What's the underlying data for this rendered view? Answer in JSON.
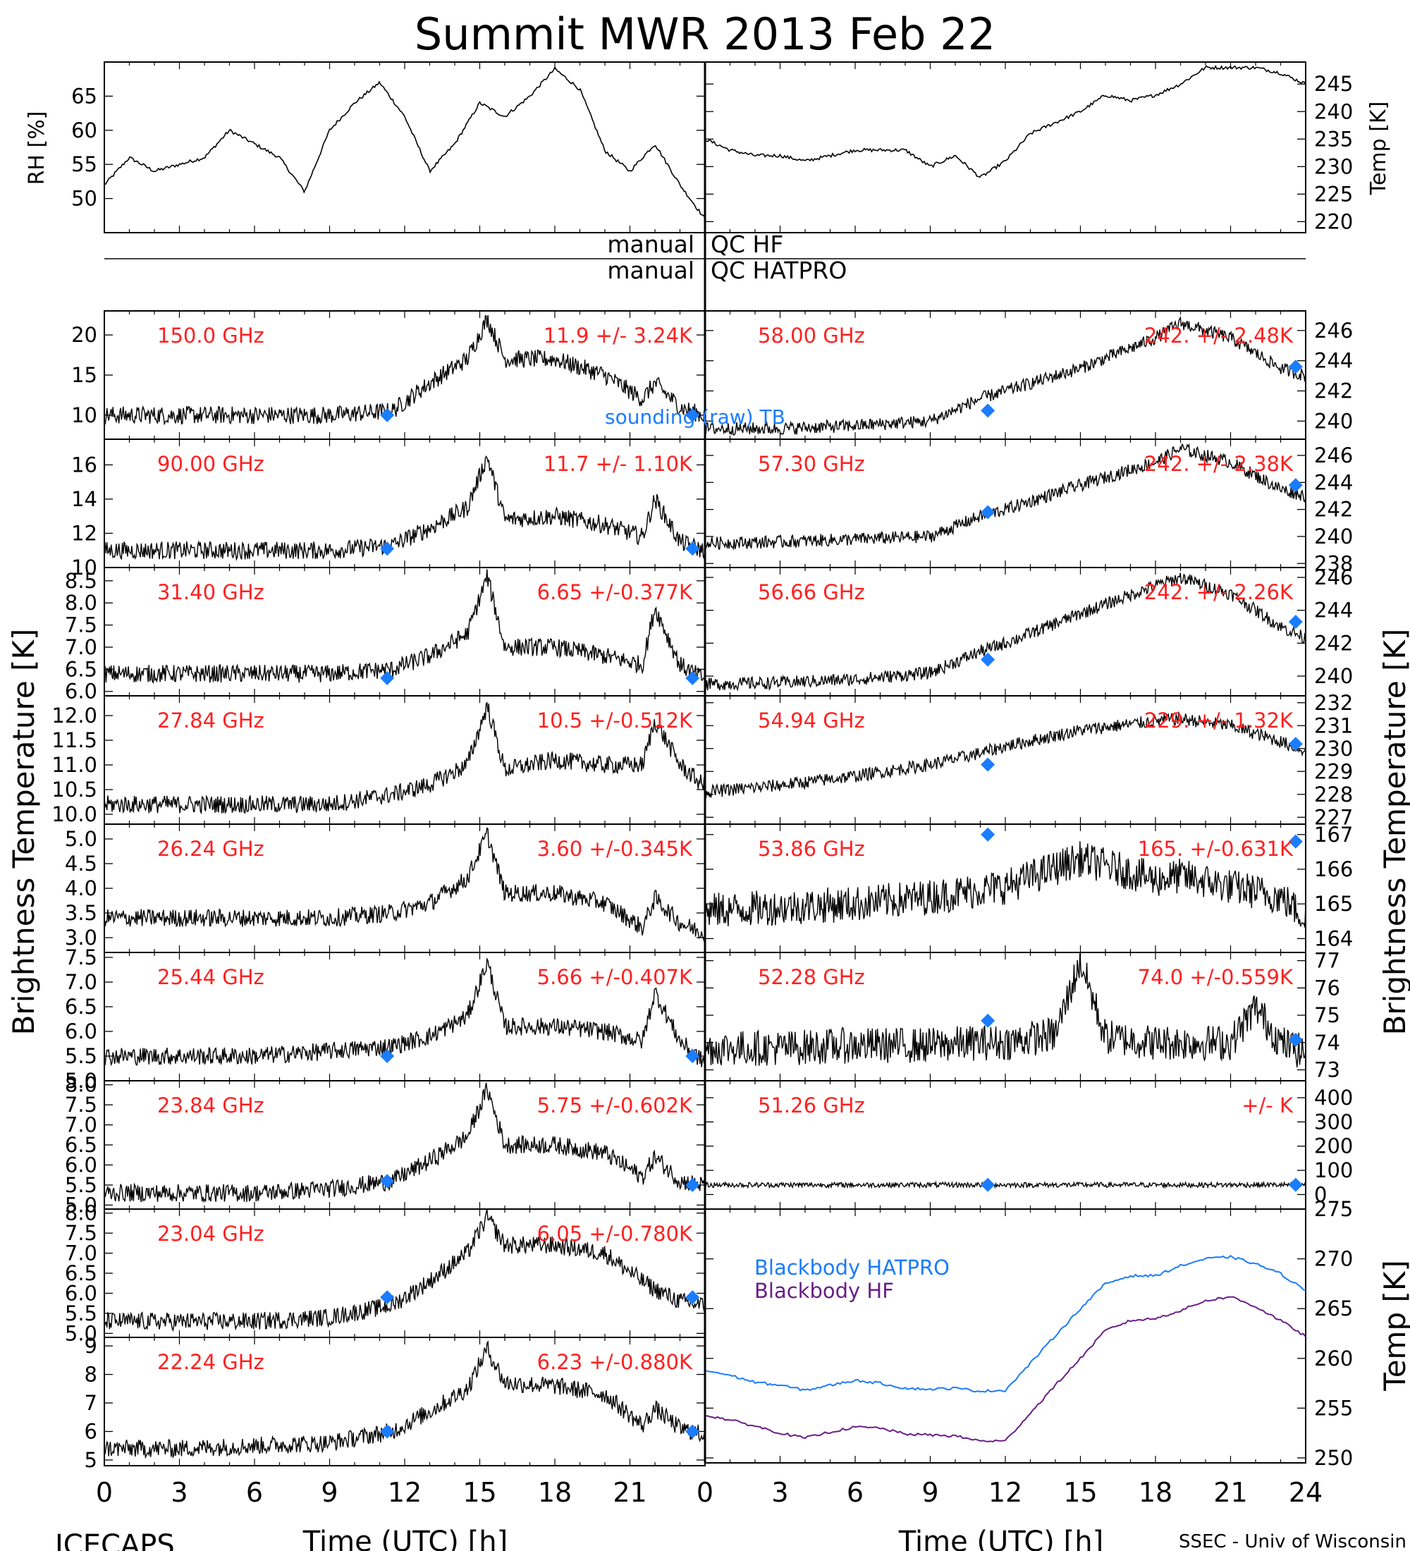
{
  "title": "Summit MWR 2013 Feb 22",
  "footer": {
    "left": "ICECAPS",
    "right": "SSEC - Univ of Wisconsin"
  },
  "xaxis": {
    "label": "Time (UTC) [h]",
    "ticks": [
      0,
      3,
      6,
      9,
      12,
      15,
      18,
      21,
      24
    ],
    "range": [
      0,
      24
    ]
  },
  "left_ylabel": "Brightness Temperature [K]",
  "right_ylabel": "Brightness Temperature [K]",
  "qc": {
    "hf_label": "manual QC HF",
    "hatpro_label": "manual QC HATPRO",
    "manual": "manual",
    "qc_hf": "QC HF",
    "qc_hatpro": "QC HATPRO"
  },
  "sounding_label": "sounding (raw) TB",
  "colors": {
    "annotation": "#ff2020",
    "sounding": "#1a7cff",
    "hatpro": "#1a7cff",
    "hf": "#6a1e88",
    "data": "#000000"
  },
  "chart_data": {
    "met": {
      "rh": {
        "ylabel": "RH [%]",
        "ticks": [
          50,
          55,
          60,
          65
        ],
        "ylim": [
          45,
          70
        ],
        "x": [
          0,
          1,
          2,
          3,
          4,
          5,
          6,
          7,
          8,
          9,
          10,
          11,
          12,
          13,
          14,
          15,
          16,
          17,
          18,
          19,
          20,
          21,
          22,
          23,
          24
        ],
        "values": [
          52,
          56,
          54,
          55,
          56,
          60,
          58,
          56,
          51,
          60,
          64,
          67,
          62,
          54,
          58,
          64,
          62,
          65,
          69,
          66,
          57,
          54,
          58,
          52,
          47
        ]
      },
      "temp": {
        "ylabel": "Temp [K]",
        "ticks": [
          220,
          225,
          230,
          235,
          240,
          245
        ],
        "ylim": [
          218,
          249
        ],
        "x": [
          0,
          1,
          2,
          3,
          4,
          5,
          6,
          7,
          8,
          9,
          10,
          11,
          12,
          13,
          14,
          15,
          16,
          17,
          18,
          19,
          20,
          21,
          22,
          23,
          24
        ],
        "values": [
          235,
          233,
          232,
          232,
          231,
          232,
          233,
          233,
          233,
          230,
          232,
          228,
          231,
          236,
          238,
          240,
          243,
          242,
          243,
          245,
          248,
          248,
          248,
          247,
          245
        ]
      }
    },
    "channels_left": [
      {
        "freq": "150.0 GHz",
        "stat": "11.9 +/-  3.24K",
        "ticks": [
          10,
          15,
          20
        ],
        "ylim": [
          7,
          23
        ],
        "x": [
          0,
          3,
          6,
          9,
          11.5,
          13,
          14.5,
          15.3,
          16,
          18,
          20,
          21.5,
          22,
          23,
          23.9
        ],
        "values": [
          10,
          10,
          10,
          10,
          10.5,
          14,
          17,
          22,
          17,
          17,
          15,
          12,
          14,
          11,
          10
        ],
        "sounding": [
          [
            11.3,
            10
          ],
          [
            23.5,
            10
          ]
        ]
      },
      {
        "freq": "90.00 GHz",
        "stat": "11.7 +/-  1.10K",
        "ticks": [
          10,
          12,
          14,
          16
        ],
        "ylim": [
          10,
          17.5
        ],
        "x": [
          0,
          3,
          6,
          9,
          11.5,
          13,
          14.5,
          15.3,
          16,
          18,
          20,
          21.5,
          22,
          23,
          23.9
        ],
        "values": [
          11,
          11,
          11,
          11,
          11.3,
          12.3,
          13.5,
          16.5,
          12.8,
          13,
          12.5,
          11.8,
          14,
          11.5,
          11
        ],
        "sounding": [
          [
            11.3,
            11.1
          ],
          [
            23.5,
            11.1
          ]
        ]
      },
      {
        "freq": "31.40 GHz",
        "stat": "6.65 +/-0.377K",
        "ticks": [
          6.0,
          6.5,
          7.0,
          7.5,
          8.0,
          8.5
        ],
        "ylim": [
          5.9,
          8.8
        ],
        "x": [
          0,
          3,
          6,
          9,
          11.5,
          13,
          14.5,
          15.3,
          16,
          18,
          20,
          21.5,
          22,
          23,
          23.9
        ],
        "values": [
          6.4,
          6.4,
          6.4,
          6.4,
          6.5,
          6.8,
          7.3,
          8.6,
          7,
          7,
          6.8,
          6.6,
          7.9,
          6.6,
          6.3
        ],
        "sounding": [
          [
            11.3,
            6.3
          ],
          [
            23.5,
            6.3
          ]
        ]
      },
      {
        "freq": "27.84 GHz",
        "stat": "10.5 +/-0.512K",
        "ticks": [
          10.0,
          10.5,
          11.0,
          11.5,
          12.0
        ],
        "ylim": [
          9.8,
          12.4
        ],
        "x": [
          0,
          3,
          6,
          9,
          11.5,
          13,
          14.5,
          15.3,
          16,
          18,
          20,
          21.5,
          22,
          23,
          23.9
        ],
        "values": [
          10.2,
          10.2,
          10.2,
          10.2,
          10.4,
          10.6,
          11,
          12.2,
          10.9,
          11.1,
          11,
          11,
          11.9,
          11,
          10.6
        ],
        "sounding": []
      },
      {
        "freq": "26.24 GHz",
        "stat": "3.60 +/-0.345K",
        "ticks": [
          3.0,
          3.5,
          4.0,
          4.5,
          5.0
        ],
        "ylim": [
          2.7,
          5.3
        ],
        "x": [
          0,
          3,
          6,
          9,
          11.5,
          13,
          14.5,
          15.3,
          16,
          18,
          20,
          21.5,
          22,
          23,
          23.9
        ],
        "values": [
          3.4,
          3.4,
          3.4,
          3.4,
          3.5,
          3.7,
          4.2,
          5.1,
          3.9,
          3.9,
          3.7,
          3.2,
          3.8,
          3.3,
          3.1
        ],
        "sounding": []
      },
      {
        "freq": "25.44 GHz",
        "stat": "5.66 +/-0.407K",
        "ticks": [
          5.0,
          5.5,
          6.0,
          6.5,
          7.0,
          7.5
        ],
        "ylim": [
          5.0,
          7.6
        ],
        "x": [
          0,
          3,
          6,
          9,
          11.5,
          13,
          14.5,
          15.3,
          16,
          18,
          20,
          21.5,
          22,
          23,
          23.9
        ],
        "values": [
          5.5,
          5.5,
          5.5,
          5.6,
          5.7,
          5.9,
          6.3,
          7.4,
          6.1,
          6.1,
          6,
          5.8,
          6.8,
          5.8,
          5.4
        ],
        "sounding": [
          [
            11.3,
            5.5
          ],
          [
            23.5,
            5.5
          ]
        ]
      },
      {
        "freq": "23.84 GHz",
        "stat": "5.75 +/-0.602K",
        "ticks": [
          5.0,
          5.5,
          6.0,
          6.5,
          7.0,
          7.5,
          8.0
        ],
        "ylim": [
          4.9,
          8.1
        ],
        "x": [
          0,
          3,
          6,
          9,
          11.5,
          13,
          14.5,
          15.3,
          16,
          18,
          20,
          21.5,
          22,
          23,
          23.9
        ],
        "values": [
          5.3,
          5.3,
          5.3,
          5.4,
          5.6,
          6.1,
          6.7,
          7.9,
          6.5,
          6.5,
          6.3,
          5.7,
          6.2,
          5.6,
          5.5
        ],
        "sounding": [
          [
            11.3,
            5.6
          ],
          [
            23.5,
            5.5
          ]
        ]
      },
      {
        "freq": "23.04 GHz",
        "stat": "6.05 +/-0.780K",
        "ticks": [
          5.0,
          5.5,
          6.0,
          6.5,
          7.0,
          7.5,
          8.0
        ],
        "ylim": [
          4.9,
          8.1
        ],
        "x": [
          0,
          3,
          6,
          9,
          11.5,
          13,
          14.5,
          15.3,
          16,
          18,
          20,
          21.5,
          22,
          23,
          23.9
        ],
        "values": [
          5.3,
          5.3,
          5.3,
          5.4,
          5.7,
          6.3,
          7,
          7.9,
          7.2,
          7.2,
          7,
          6.3,
          6.1,
          5.8,
          5.7
        ],
        "sounding": [
          [
            11.3,
            5.9
          ],
          [
            23.5,
            5.9
          ]
        ]
      },
      {
        "freq": "22.24 GHz",
        "stat": "6.23 +/-0.880K",
        "ticks": [
          5,
          6,
          7,
          8,
          9
        ],
        "ylim": [
          4.8,
          9.3
        ],
        "x": [
          0,
          3,
          6,
          9,
          11.5,
          13,
          14.5,
          15.3,
          16,
          18,
          20,
          21.5,
          22,
          23,
          23.9
        ],
        "values": [
          5.4,
          5.4,
          5.5,
          5.6,
          6,
          6.7,
          7.5,
          8.9,
          7.7,
          7.6,
          7.3,
          6.2,
          6.8,
          6.1,
          5.9
        ],
        "sounding": [
          [
            11.3,
            6
          ],
          [
            23.5,
            6
          ]
        ]
      }
    ],
    "channels_right": [
      {
        "freq": "58.00 GHz",
        "stat": "242. +/- 2.48K",
        "ticks": [
          240,
          242,
          244,
          246
        ],
        "ylim": [
          238.8,
          247.3
        ],
        "x": [
          0,
          3,
          6,
          9,
          11,
          12,
          15,
          18,
          19,
          21,
          23,
          24
        ],
        "values": [
          239.5,
          239.5,
          239.7,
          240,
          241.5,
          242,
          243.5,
          245.5,
          246.5,
          245.5,
          243.5,
          243
        ],
        "sounding": [
          [
            11.3,
            240.7
          ],
          [
            23.6,
            243.6
          ]
        ]
      },
      {
        "freq": "57.30 GHz",
        "stat": "242. +/- 2.38K",
        "ticks": [
          238,
          240,
          242,
          244,
          246
        ],
        "ylim": [
          237.7,
          247.2
        ],
        "x": [
          0,
          3,
          6,
          9,
          11,
          12,
          15,
          18,
          19,
          21,
          23,
          24
        ],
        "values": [
          239.5,
          239.6,
          239.8,
          240,
          241.5,
          242,
          243.8,
          245.5,
          246.5,
          245.5,
          243.5,
          243
        ],
        "sounding": [
          [
            11.3,
            241.8
          ],
          [
            23.6,
            243.8
          ]
        ]
      },
      {
        "freq": "56.66 GHz",
        "stat": "242. +/- 2.26K",
        "ticks": [
          240,
          242,
          244,
          246
        ],
        "ylim": [
          238.8,
          246.6
        ],
        "x": [
          0,
          3,
          6,
          9,
          11,
          12,
          15,
          18,
          19,
          21,
          23,
          24
        ],
        "values": [
          239.5,
          239.6,
          239.8,
          240.2,
          241.5,
          242,
          243.8,
          245.5,
          246,
          245,
          243,
          242.3
        ],
        "sounding": [
          [
            11.3,
            241
          ],
          [
            23.6,
            243.3
          ]
        ]
      },
      {
        "freq": "54.94 GHz",
        "stat": "229. +/- 1.32K",
        "ticks": [
          227,
          228,
          229,
          230,
          231,
          232
        ],
        "ylim": [
          226.7,
          232.3
        ],
        "x": [
          0,
          3,
          6,
          9,
          11,
          12,
          15,
          18,
          19,
          21,
          23,
          24
        ],
        "values": [
          228.1,
          228.4,
          228.8,
          229.3,
          229.8,
          230.1,
          230.8,
          231.2,
          231.3,
          231,
          230.3,
          229.9
        ],
        "sounding": [
          [
            11.3,
            229.3
          ],
          [
            23.6,
            230.2
          ]
        ]
      },
      {
        "freq": "53.86 GHz",
        "stat": "165. +/-0.631K",
        "ticks": [
          164,
          165,
          166,
          167
        ],
        "ylim": [
          163.6,
          167.3
        ],
        "x": [
          0,
          3,
          6,
          9,
          11,
          12,
          15,
          18,
          19,
          21,
          23,
          24
        ],
        "values": [
          164.8,
          164.9,
          165,
          165.2,
          165.4,
          165.5,
          166.3,
          165.7,
          165.8,
          165.5,
          165.2,
          164.6
        ],
        "sounding": [
          [
            11.3,
            167
          ],
          [
            23.6,
            166.8
          ]
        ]
      },
      {
        "freq": "52.28 GHz",
        "stat": "74.0 +/-0.559K",
        "ticks": [
          73,
          74,
          75,
          76,
          77
        ],
        "ylim": [
          72.6,
          77.3
        ],
        "x": [
          0,
          3,
          6,
          9,
          11,
          12,
          14,
          15,
          16,
          18,
          21,
          22,
          23,
          24
        ],
        "values": [
          73.8,
          73.8,
          73.9,
          73.9,
          74,
          74,
          74.3,
          77,
          74.2,
          74,
          74,
          75.3,
          74,
          73.6
        ],
        "sounding": [
          [
            11.3,
            74.8
          ],
          [
            23.6,
            74.1
          ]
        ]
      },
      {
        "freq": "51.26 GHz",
        "stat": "+/-      K",
        "ticks": [
          0,
          100,
          200,
          300,
          400
        ],
        "ylim": [
          -60,
          470
        ],
        "x": [
          0,
          6,
          12,
          18,
          24
        ],
        "values": [
          40,
          40,
          40,
          40,
          40
        ],
        "sounding": [
          [
            11.3,
            40
          ],
          [
            23.6,
            40
          ]
        ]
      }
    ],
    "blackbody": {
      "ylabel": "Temp [K]",
      "ticks": [
        250,
        255,
        260,
        265,
        270,
        275
      ],
      "ylim": [
        249.5,
        275
      ],
      "series": [
        {
          "name": "Blackbody HATPRO",
          "x": [
            0,
            1,
            2,
            3,
            4,
            5,
            6,
            7,
            8,
            9,
            10,
            11,
            12,
            13,
            14,
            15,
            16,
            17,
            18,
            19,
            20,
            21,
            22,
            23,
            24
          ],
          "values": [
            258.8,
            258.3,
            257.6,
            257.3,
            256.8,
            257.3,
            257.8,
            257.5,
            257,
            256.9,
            257,
            256.7,
            256.8,
            259.5,
            262.3,
            265,
            267.5,
            268.3,
            268.3,
            269.3,
            270,
            270.2,
            269.5,
            268.5,
            266.8
          ]
        },
        {
          "name": "Blackbody HF",
          "x": [
            0,
            1,
            2,
            3,
            4,
            5,
            6,
            7,
            8,
            9,
            10,
            11,
            12,
            13,
            14,
            15,
            16,
            17,
            18,
            19,
            20,
            21,
            22,
            23,
            24
          ],
          "values": [
            254.3,
            253.8,
            253.2,
            252.5,
            252,
            252.6,
            253.1,
            253,
            252.4,
            252.3,
            252.2,
            251.7,
            251.7,
            254.5,
            257.3,
            260,
            262.8,
            263.8,
            264,
            264.8,
            265.8,
            266.2,
            265.2,
            263.8,
            262.2
          ]
        }
      ]
    }
  }
}
